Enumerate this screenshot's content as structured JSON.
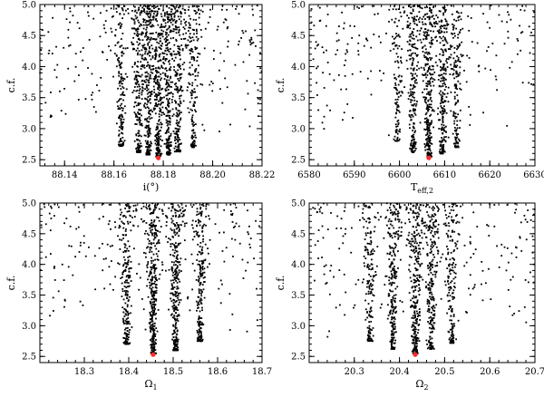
{
  "chart_data": [
    {
      "type": "scatter",
      "xlabel": "i(°)",
      "ylabel": "c.f.",
      "xlim": [
        88.13,
        88.22
      ],
      "ylim": [
        2.4,
        5.0
      ],
      "xticks": [
        88.14,
        88.16,
        88.18,
        88.2,
        88.22
      ],
      "xtick_labels": [
        "88.14",
        "88.16",
        "88.18",
        "88.20",
        "88.22"
      ],
      "yticks": [
        2.5,
        3.0,
        3.5,
        4.0,
        4.5,
        5.0
      ],
      "ytick_labels": [
        "2.5",
        "3.0",
        "3.5",
        "4.0",
        "4.5",
        "5.0"
      ],
      "points_color": "#000000",
      "best_fit": {
        "x": 88.178,
        "y": 2.53,
        "color": "#ff2a2a"
      },
      "clusters": [
        {
          "x": 88.17,
          "y_min": 2.62,
          "count": 240
        },
        {
          "x": 88.174,
          "y_min": 2.58,
          "count": 260
        },
        {
          "x": 88.178,
          "y_min": 2.55,
          "count": 280
        },
        {
          "x": 88.182,
          "y_min": 2.58,
          "count": 250
        },
        {
          "x": 88.186,
          "y_min": 2.63,
          "count": 220
        },
        {
          "x": 88.163,
          "y_min": 2.72,
          "count": 160
        },
        {
          "x": 88.192,
          "y_min": 2.7,
          "count": 160
        }
      ],
      "scatter_count": 240
    },
    {
      "type": "scatter",
      "xlabel": "T_eff,2",
      "ylabel": "c.f.",
      "xlim": [
        6580,
        6630
      ],
      "ylim": [
        2.4,
        5.0
      ],
      "xticks": [
        6580,
        6590,
        6600,
        6610,
        6620,
        6630
      ],
      "xtick_labels": [
        "6580",
        "6590",
        "6600",
        "6610",
        "6620",
        "6630"
      ],
      "yticks": [
        2.5,
        3.0,
        3.5,
        4.0,
        4.5,
        5.0
      ],
      "ytick_labels": [
        "2.5",
        "3.0",
        "3.5",
        "4.0",
        "4.5",
        "5.0"
      ],
      "points_color": "#000000",
      "best_fit": {
        "x": 6606.5,
        "y": 2.53,
        "color": "#ff2a2a"
      },
      "clusters": [
        {
          "x": 6603.0,
          "y_min": 2.62,
          "count": 220
        },
        {
          "x": 6606.5,
          "y_min": 2.55,
          "count": 300
        },
        {
          "x": 6609.5,
          "y_min": 2.6,
          "count": 240
        },
        {
          "x": 6612.5,
          "y_min": 2.7,
          "count": 150
        },
        {
          "x": 6599.5,
          "y_min": 2.8,
          "count": 110
        }
      ],
      "scatter_count": 220
    },
    {
      "type": "scatter",
      "xlabel": "Ω1",
      "ylabel": "c.f.",
      "xlim": [
        18.2,
        18.7
      ],
      "ylim": [
        2.4,
        5.0
      ],
      "xticks": [
        18.3,
        18.4,
        18.5,
        18.6,
        18.7
      ],
      "xtick_labels": [
        "18.3",
        "18.4",
        "18.5",
        "18.6",
        "18.7"
      ],
      "yticks": [
        2.5,
        3.0,
        3.5,
        4.0,
        4.5,
        5.0
      ],
      "ytick_labels": [
        "2.5",
        "3.0",
        "3.5",
        "4.0",
        "4.5",
        "5.0"
      ],
      "points_color": "#000000",
      "best_fit": {
        "x": 18.455,
        "y": 2.53,
        "color": "#ff2a2a"
      },
      "clusters": [
        {
          "x": 18.395,
          "y_min": 2.7,
          "count": 220
        },
        {
          "x": 18.455,
          "y_min": 2.55,
          "count": 340
        },
        {
          "x": 18.505,
          "y_min": 2.6,
          "count": 300
        },
        {
          "x": 18.56,
          "y_min": 2.75,
          "count": 200
        }
      ],
      "scatter_count": 220
    },
    {
      "type": "scatter",
      "xlabel": "Ω2",
      "ylabel": "c.f.",
      "xlim": [
        20.2,
        20.7
      ],
      "ylim": [
        2.4,
        5.0
      ],
      "xticks": [
        20.3,
        20.4,
        20.5,
        20.6,
        20.7
      ],
      "xtick_labels": [
        "20.3",
        "20.4",
        "20.5",
        "20.6",
        "20.7"
      ],
      "yticks": [
        2.5,
        3.0,
        3.5,
        4.0,
        4.5,
        5.0
      ],
      "ytick_labels": [
        "2.5",
        "3.0",
        "3.5",
        "4.0",
        "4.5",
        "5.0"
      ],
      "points_color": "#000000",
      "best_fit": {
        "x": 20.435,
        "y": 2.53,
        "color": "#ff2a2a"
      },
      "clusters": [
        {
          "x": 20.335,
          "y_min": 2.75,
          "count": 150
        },
        {
          "x": 20.385,
          "y_min": 2.62,
          "count": 240
        },
        {
          "x": 20.435,
          "y_min": 2.55,
          "count": 300
        },
        {
          "x": 20.47,
          "y_min": 2.62,
          "count": 240
        },
        {
          "x": 20.515,
          "y_min": 2.72,
          "count": 170
        }
      ],
      "scatter_count": 240
    }
  ]
}
